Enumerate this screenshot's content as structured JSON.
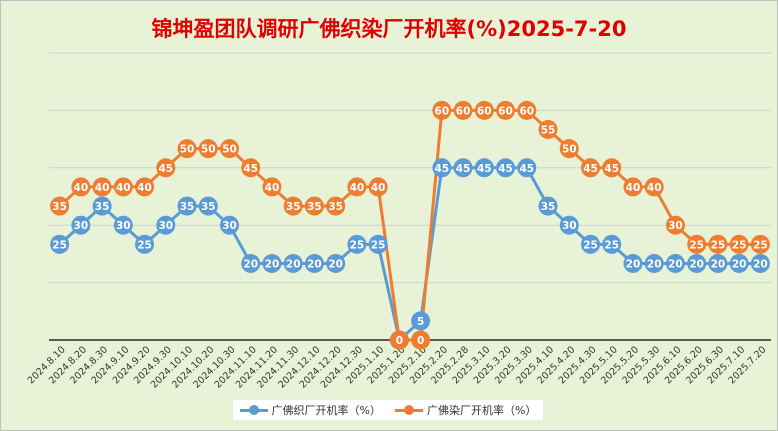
{
  "chart_data": {
    "type": "line",
    "title": "锦坤盈团队调研广佛织染厂开机率(%)2025-7-20",
    "xlabel": "",
    "ylabel": "",
    "ylim": [
      0,
      75
    ],
    "grid": true,
    "legend_position": "bottom",
    "categories": [
      "2024.8.10",
      "2024.8.20",
      "2024.8.30",
      "2024.9.10",
      "2024.9.20",
      "2024.9.30",
      "2024.10.10",
      "2024.10.20",
      "2024.10.30",
      "2024.11.10",
      "2024.11.20",
      "2024.11.30",
      "2024.12.10",
      "2024.12.20",
      "2024.12.30",
      "2025.1.10",
      "2025.1.20",
      "2025.2.10",
      "2025.2.20",
      "2025.2.28",
      "2025.3.10",
      "2025.3.20",
      "2025.3.30",
      "2025.4.10",
      "2025.4.20",
      "2025.4.30",
      "2025.5.10",
      "2025.5.20",
      "2025.5.30",
      "2025.6.10",
      "2025.6.20",
      "2025.6.30",
      "2025.7.10",
      "2025.7.20"
    ],
    "series": [
      {
        "name": "广佛织厂开机率（%）",
        "color": "#5b9bd5",
        "values": [
          25,
          30,
          35,
          30,
          25,
          30,
          35,
          35,
          30,
          20,
          20,
          20,
          20,
          20,
          25,
          25,
          0,
          5,
          45,
          45,
          45,
          45,
          45,
          35,
          30,
          25,
          25,
          20,
          20,
          20,
          20,
          20,
          20,
          20
        ]
      },
      {
        "name": "广佛染厂开机率（%）",
        "color": "#ed7d31",
        "values": [
          35,
          40,
          40,
          40,
          40,
          45,
          50,
          50,
          50,
          45,
          40,
          35,
          35,
          35,
          40,
          40,
          0,
          0,
          60,
          60,
          60,
          60,
          60,
          55,
          50,
          45,
          45,
          40,
          40,
          30,
          25,
          25,
          25,
          25
        ]
      }
    ]
  }
}
